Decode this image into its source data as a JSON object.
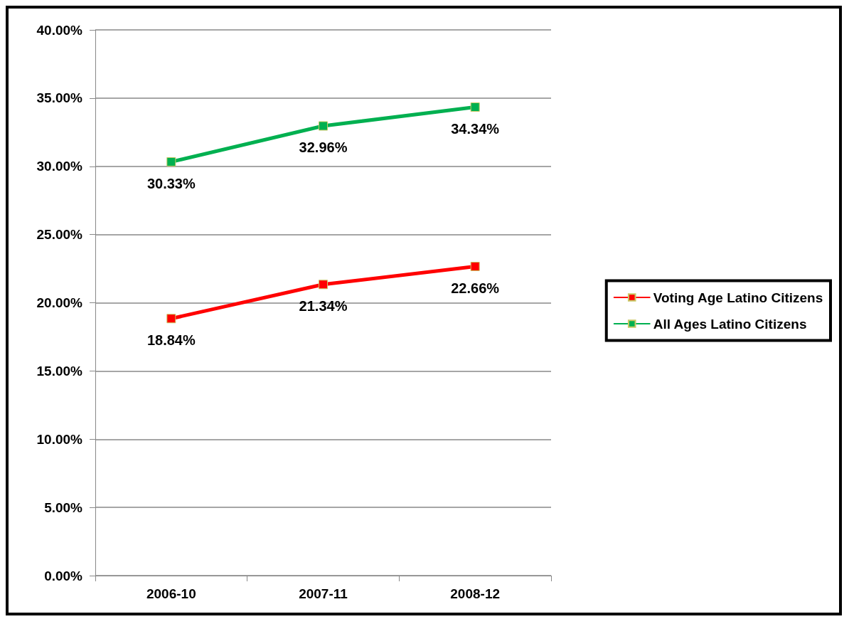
{
  "chart_data": {
    "type": "line",
    "categories": [
      "2006-10",
      "2007-11",
      "2008-12"
    ],
    "series": [
      {
        "name": "Voting Age Latino Citizens",
        "color": "#ff0000",
        "values": [
          18.84,
          21.34,
          22.66
        ],
        "value_labels": [
          "18.84%",
          "21.34%",
          "22.66%"
        ]
      },
      {
        "name": "All Ages Latino Citizens",
        "color": "#00b050",
        "values": [
          30.33,
          32.96,
          34.34
        ],
        "value_labels": [
          "30.33%",
          "32.96%",
          "34.34%"
        ]
      }
    ],
    "ylim": [
      0,
      40
    ],
    "yticks": [
      {
        "value": 0,
        "label": "0.00%"
      },
      {
        "value": 5,
        "label": "5.00%"
      },
      {
        "value": 10,
        "label": "10.00%"
      },
      {
        "value": 15,
        "label": "15.00%"
      },
      {
        "value": 20,
        "label": "20.00%"
      },
      {
        "value": 25,
        "label": "25.00%"
      },
      {
        "value": 30,
        "label": "30.00%"
      },
      {
        "value": 35,
        "label": "35.00%"
      },
      {
        "value": 40,
        "label": "40.00%"
      }
    ],
    "grid": "y",
    "legend": "right",
    "marker": "square",
    "line_style": "solid"
  }
}
